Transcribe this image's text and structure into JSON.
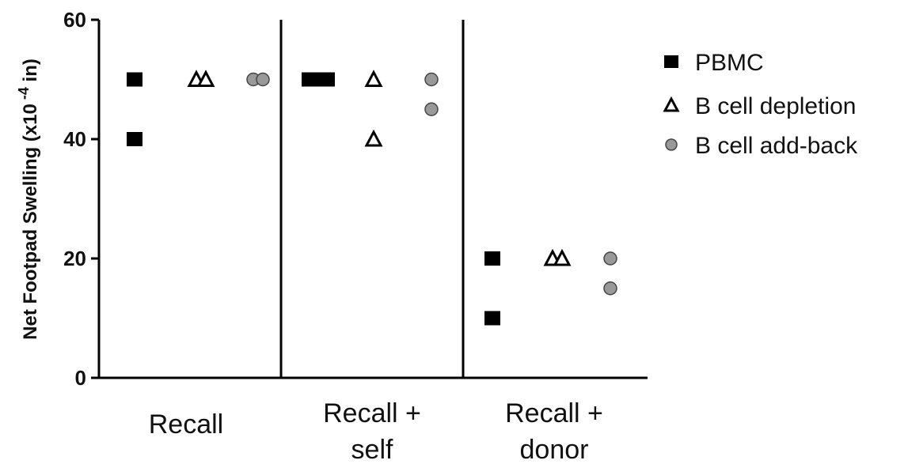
{
  "chart_data": {
    "type": "scatter",
    "ylabel": "Net Footpad Swelling (x10",
    "ylabel_exp": "-4",
    "ylabel_suffix": " in)",
    "ylim": [
      0,
      60
    ],
    "yticks": [
      "0",
      "20",
      "40",
      "60"
    ],
    "categories": [
      {
        "lines": [
          "Recall"
        ]
      },
      {
        "lines": [
          "Recall +",
          "self"
        ]
      },
      {
        "lines": [
          "Recall +",
          "donor"
        ]
      }
    ],
    "series": [
      {
        "name": "PBMC",
        "marker": "square",
        "color": "#000000",
        "points": [
          {
            "category": 0,
            "values": [
              50,
              40
            ]
          },
          {
            "category": 1,
            "values": [
              50,
              50,
              50
            ]
          },
          {
            "category": 2,
            "values": [
              20,
              10
            ]
          }
        ]
      },
      {
        "name": "B cell depletion",
        "marker": "triangle-open",
        "color": "#000000",
        "points": [
          {
            "category": 0,
            "values": [
              50,
              50
            ]
          },
          {
            "category": 1,
            "values": [
              50,
              40
            ]
          },
          {
            "category": 2,
            "values": [
              20,
              20
            ]
          }
        ]
      },
      {
        "name": "B cell add-back",
        "marker": "circle-gray",
        "color": "#999999",
        "points": [
          {
            "category": 0,
            "values": [
              50,
              50
            ]
          },
          {
            "category": 1,
            "values": [
              50,
              45
            ]
          },
          {
            "category": 2,
            "values": [
              20,
              15
            ]
          }
        ]
      }
    ],
    "grid": false,
    "legend": "right"
  }
}
